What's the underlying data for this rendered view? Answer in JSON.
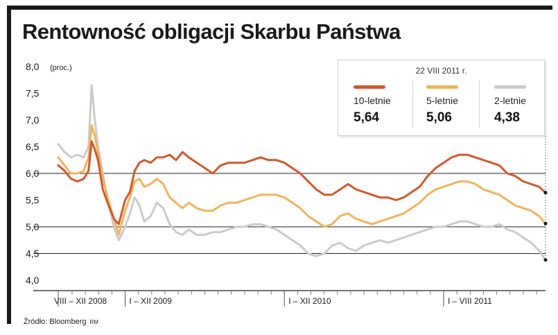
{
  "title": "Rentowność obligacji Skarbu Państwa",
  "source": "Źródło: Bloomberg",
  "source_initials": "RM",
  "legend": {
    "date": "22 VIII 2011 r.",
    "items": [
      {
        "name": "10-letnie",
        "value": "5,64",
        "color": "#d4572a"
      },
      {
        "name": "5-letnie",
        "value": "5,06",
        "color": "#f2b458"
      },
      {
        "name": "2-letnie",
        "value": "4,38",
        "color": "#cbcbcb"
      }
    ]
  },
  "chart_data": {
    "type": "line",
    "title": "Rentowność obligacji Skarbu Państwa",
    "ylabel": "(proc.)",
    "xlabel": "",
    "ylim": [
      4.0,
      8.0
    ],
    "yticks": [
      "8,0",
      "7,5",
      "7,0",
      "6,5",
      "6,0",
      "5,5",
      "5,0",
      "4,5",
      "4,0"
    ],
    "gridlines": [
      6.0,
      5.0,
      4.5
    ],
    "x_periods": [
      "VIII – XII 2008",
      "I – XII 2009",
      "I – XII 2010",
      "I – VIII 2011"
    ],
    "x_period_bounds": [
      [
        2008.58,
        2009.0
      ],
      [
        2009.0,
        2010.0
      ],
      [
        2010.0,
        2011.0
      ],
      [
        2011.0,
        2011.64
      ]
    ],
    "series": [
      {
        "name": "10-letnie",
        "color": "#d4572a",
        "last": 5.64,
        "points": [
          [
            2008.58,
            6.15
          ],
          [
            2008.62,
            6.05
          ],
          [
            2008.66,
            5.9
          ],
          [
            2008.7,
            5.85
          ],
          [
            2008.74,
            5.9
          ],
          [
            2008.77,
            6.05
          ],
          [
            2008.79,
            6.6
          ],
          [
            2008.81,
            6.45
          ],
          [
            2008.83,
            6.25
          ],
          [
            2008.86,
            5.7
          ],
          [
            2008.89,
            5.45
          ],
          [
            2008.93,
            5.15
          ],
          [
            2008.96,
            5.05
          ],
          [
            2009.0,
            5.5
          ],
          [
            2009.03,
            5.65
          ],
          [
            2009.06,
            6.05
          ],
          [
            2009.09,
            6.2
          ],
          [
            2009.12,
            6.25
          ],
          [
            2009.16,
            6.2
          ],
          [
            2009.2,
            6.3
          ],
          [
            2009.24,
            6.3
          ],
          [
            2009.28,
            6.35
          ],
          [
            2009.32,
            6.25
          ],
          [
            2009.36,
            6.4
          ],
          [
            2009.4,
            6.3
          ],
          [
            2009.45,
            6.2
          ],
          [
            2009.5,
            6.1
          ],
          [
            2009.55,
            6.0
          ],
          [
            2009.6,
            6.15
          ],
          [
            2009.65,
            6.2
          ],
          [
            2009.7,
            6.2
          ],
          [
            2009.75,
            6.2
          ],
          [
            2009.8,
            6.25
          ],
          [
            2009.85,
            6.3
          ],
          [
            2009.9,
            6.25
          ],
          [
            2009.95,
            6.25
          ],
          [
            2010.0,
            6.2
          ],
          [
            2010.05,
            6.1
          ],
          [
            2010.1,
            6.0
          ],
          [
            2010.15,
            5.85
          ],
          [
            2010.2,
            5.7
          ],
          [
            2010.25,
            5.6
          ],
          [
            2010.3,
            5.6
          ],
          [
            2010.35,
            5.7
          ],
          [
            2010.4,
            5.8
          ],
          [
            2010.45,
            5.7
          ],
          [
            2010.5,
            5.65
          ],
          [
            2010.55,
            5.6
          ],
          [
            2010.6,
            5.55
          ],
          [
            2010.65,
            5.55
          ],
          [
            2010.7,
            5.5
          ],
          [
            2010.75,
            5.55
          ],
          [
            2010.8,
            5.65
          ],
          [
            2010.85,
            5.75
          ],
          [
            2010.9,
            5.95
          ],
          [
            2010.95,
            6.1
          ],
          [
            2011.0,
            6.2
          ],
          [
            2011.05,
            6.3
          ],
          [
            2011.1,
            6.35
          ],
          [
            2011.15,
            6.35
          ],
          [
            2011.2,
            6.3
          ],
          [
            2011.25,
            6.25
          ],
          [
            2011.3,
            6.2
          ],
          [
            2011.35,
            6.15
          ],
          [
            2011.4,
            6.0
          ],
          [
            2011.45,
            5.95
          ],
          [
            2011.5,
            5.85
          ],
          [
            2011.55,
            5.8
          ],
          [
            2011.6,
            5.75
          ],
          [
            2011.64,
            5.64
          ]
        ]
      },
      {
        "name": "5-letnie",
        "color": "#f2b458",
        "last": 5.06,
        "points": [
          [
            2008.58,
            6.3
          ],
          [
            2008.62,
            6.15
          ],
          [
            2008.66,
            6.0
          ],
          [
            2008.7,
            6.0
          ],
          [
            2008.74,
            6.05
          ],
          [
            2008.77,
            6.3
          ],
          [
            2008.79,
            6.9
          ],
          [
            2008.81,
            6.7
          ],
          [
            2008.83,
            6.4
          ],
          [
            2008.86,
            5.9
          ],
          [
            2008.89,
            5.55
          ],
          [
            2008.93,
            5.15
          ],
          [
            2008.96,
            4.85
          ],
          [
            2009.0,
            5.3
          ],
          [
            2009.03,
            5.55
          ],
          [
            2009.06,
            5.85
          ],
          [
            2009.09,
            5.9
          ],
          [
            2009.12,
            5.75
          ],
          [
            2009.16,
            5.8
          ],
          [
            2009.2,
            5.9
          ],
          [
            2009.24,
            5.8
          ],
          [
            2009.28,
            5.55
          ],
          [
            2009.32,
            5.45
          ],
          [
            2009.36,
            5.35
          ],
          [
            2009.4,
            5.45
          ],
          [
            2009.45,
            5.35
          ],
          [
            2009.5,
            5.3
          ],
          [
            2009.55,
            5.3
          ],
          [
            2009.6,
            5.4
          ],
          [
            2009.65,
            5.45
          ],
          [
            2009.7,
            5.45
          ],
          [
            2009.75,
            5.5
          ],
          [
            2009.8,
            5.55
          ],
          [
            2009.85,
            5.6
          ],
          [
            2009.9,
            5.6
          ],
          [
            2009.95,
            5.6
          ],
          [
            2010.0,
            5.55
          ],
          [
            2010.05,
            5.45
          ],
          [
            2010.1,
            5.35
          ],
          [
            2010.15,
            5.2
          ],
          [
            2010.2,
            5.1
          ],
          [
            2010.25,
            5.0
          ],
          [
            2010.3,
            5.05
          ],
          [
            2010.35,
            5.2
          ],
          [
            2010.4,
            5.25
          ],
          [
            2010.45,
            5.15
          ],
          [
            2010.5,
            5.1
          ],
          [
            2010.55,
            5.05
          ],
          [
            2010.6,
            5.1
          ],
          [
            2010.65,
            5.15
          ],
          [
            2010.7,
            5.2
          ],
          [
            2010.75,
            5.25
          ],
          [
            2010.8,
            5.35
          ],
          [
            2010.85,
            5.45
          ],
          [
            2010.9,
            5.6
          ],
          [
            2010.95,
            5.7
          ],
          [
            2011.0,
            5.75
          ],
          [
            2011.05,
            5.8
          ],
          [
            2011.1,
            5.85
          ],
          [
            2011.15,
            5.85
          ],
          [
            2011.2,
            5.8
          ],
          [
            2011.25,
            5.7
          ],
          [
            2011.3,
            5.65
          ],
          [
            2011.35,
            5.6
          ],
          [
            2011.4,
            5.5
          ],
          [
            2011.45,
            5.4
          ],
          [
            2011.5,
            5.35
          ],
          [
            2011.55,
            5.3
          ],
          [
            2011.6,
            5.2
          ],
          [
            2011.64,
            5.06
          ]
        ]
      },
      {
        "name": "2-letnie",
        "color": "#cbcbcb",
        "last": 4.38,
        "points": [
          [
            2008.58,
            6.55
          ],
          [
            2008.62,
            6.4
          ],
          [
            2008.66,
            6.3
          ],
          [
            2008.7,
            6.35
          ],
          [
            2008.74,
            6.3
          ],
          [
            2008.77,
            6.5
          ],
          [
            2008.79,
            7.65
          ],
          [
            2008.81,
            7.0
          ],
          [
            2008.83,
            6.5
          ],
          [
            2008.86,
            6.0
          ],
          [
            2008.89,
            5.5
          ],
          [
            2008.93,
            5.0
          ],
          [
            2008.96,
            4.75
          ],
          [
            2009.0,
            5.0
          ],
          [
            2009.03,
            5.25
          ],
          [
            2009.06,
            5.55
          ],
          [
            2009.09,
            5.4
          ],
          [
            2009.12,
            5.1
          ],
          [
            2009.16,
            5.2
          ],
          [
            2009.2,
            5.45
          ],
          [
            2009.24,
            5.35
          ],
          [
            2009.28,
            5.05
          ],
          [
            2009.32,
            4.9
          ],
          [
            2009.36,
            4.85
          ],
          [
            2009.4,
            4.95
          ],
          [
            2009.45,
            4.85
          ],
          [
            2009.5,
            4.85
          ],
          [
            2009.55,
            4.9
          ],
          [
            2009.6,
            4.9
          ],
          [
            2009.65,
            4.95
          ],
          [
            2009.7,
            5.0
          ],
          [
            2009.75,
            5.0
          ],
          [
            2009.8,
            5.05
          ],
          [
            2009.85,
            5.05
          ],
          [
            2009.9,
            5.0
          ],
          [
            2009.95,
            4.95
          ],
          [
            2010.0,
            4.85
          ],
          [
            2010.05,
            4.75
          ],
          [
            2010.1,
            4.65
          ],
          [
            2010.15,
            4.5
          ],
          [
            2010.2,
            4.45
          ],
          [
            2010.25,
            4.5
          ],
          [
            2010.3,
            4.65
          ],
          [
            2010.35,
            4.7
          ],
          [
            2010.4,
            4.6
          ],
          [
            2010.45,
            4.55
          ],
          [
            2010.5,
            4.65
          ],
          [
            2010.55,
            4.7
          ],
          [
            2010.6,
            4.75
          ],
          [
            2010.65,
            4.7
          ],
          [
            2010.7,
            4.75
          ],
          [
            2010.75,
            4.8
          ],
          [
            2010.8,
            4.85
          ],
          [
            2010.85,
            4.9
          ],
          [
            2010.9,
            4.95
          ],
          [
            2010.95,
            5.0
          ],
          [
            2011.0,
            5.0
          ],
          [
            2011.05,
            5.05
          ],
          [
            2011.1,
            5.1
          ],
          [
            2011.15,
            5.1
          ],
          [
            2011.2,
            5.05
          ],
          [
            2011.25,
            5.0
          ],
          [
            2011.3,
            5.0
          ],
          [
            2011.35,
            5.05
          ],
          [
            2011.4,
            4.95
          ],
          [
            2011.45,
            4.9
          ],
          [
            2011.5,
            4.8
          ],
          [
            2011.55,
            4.7
          ],
          [
            2011.6,
            4.55
          ],
          [
            2011.64,
            4.38
          ]
        ]
      }
    ]
  }
}
